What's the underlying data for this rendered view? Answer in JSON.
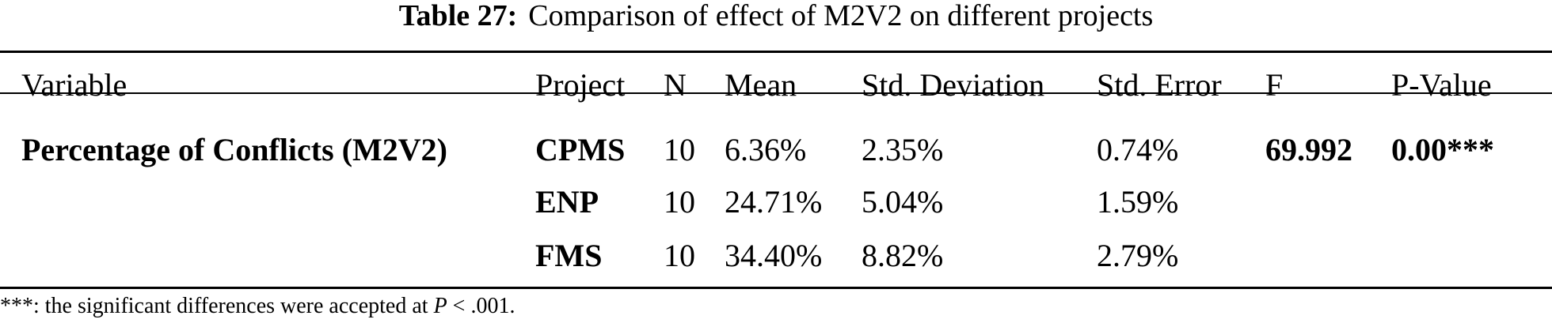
{
  "caption": {
    "label": "Table 27:",
    "text": "Comparison of effect of M2V2 on different projects"
  },
  "table": {
    "headers": {
      "variable": "Variable",
      "project": "Project",
      "n": "N",
      "mean": "Mean",
      "std_deviation": "Std. Deviation",
      "std_error": "Std. Error",
      "f": "F",
      "p_value": "P-Value"
    },
    "variable_name": "Percentage of Conflicts (M2V2)",
    "f_value": "69.992",
    "p_value": "0.00***",
    "rows": [
      {
        "project": "CPMS",
        "n": "10",
        "mean": "6.36%",
        "std_deviation": "2.35%",
        "std_error": "0.74%"
      },
      {
        "project": "ENP",
        "n": "10",
        "mean": "24.71%",
        "std_deviation": "5.04%",
        "std_error": "1.59%"
      },
      {
        "project": "FMS",
        "n": "10",
        "mean": "34.40%",
        "std_deviation": "8.82%",
        "std_error": "2.79%"
      }
    ]
  },
  "footnote": {
    "prefix": "***: the significant differences were accepted at ",
    "symbol": "P",
    "suffix": " < .001."
  }
}
